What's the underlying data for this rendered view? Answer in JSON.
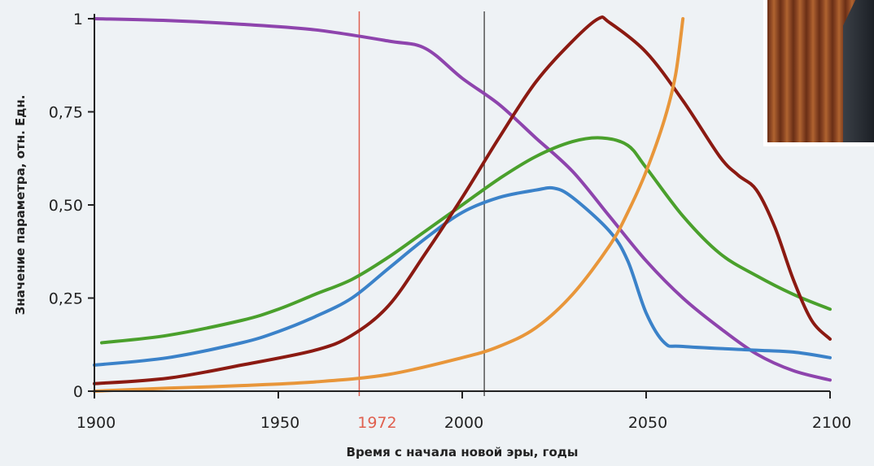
{
  "chart_data": {
    "type": "line",
    "title": "",
    "xlabel": "Время с начала новой эры, годы",
    "ylabel": "Значение параметра, отн. Едн.",
    "xlim": [
      1900,
      2100
    ],
    "ylim": [
      0,
      1
    ],
    "x_ticks": [
      {
        "value": 1900,
        "label": "1900"
      },
      {
        "value": 1950,
        "label": "1950"
      },
      {
        "value": 2000,
        "label": "2000"
      },
      {
        "value": 2050,
        "label": "2050"
      },
      {
        "value": 2100,
        "label": "2100"
      }
    ],
    "y_ticks": [
      {
        "value": 0,
        "label": "0"
      },
      {
        "value": 0.25,
        "label": "0,25"
      },
      {
        "value": 0.5,
        "label": "0,50"
      },
      {
        "value": 0.75,
        "label": "0,75"
      },
      {
        "value": 1,
        "label": "1"
      }
    ],
    "grid": false,
    "legend": "none",
    "vertical_markers": [
      {
        "x": 1972,
        "label": "1972",
        "color": "#e0604f"
      },
      {
        "x": 2006,
        "label": "",
        "color": "#555555"
      }
    ],
    "series": [
      {
        "color": "#8e44ad",
        "points": [
          [
            1900,
            1.0
          ],
          [
            1920,
            0.995
          ],
          [
            1940,
            0.985
          ],
          [
            1960,
            0.97
          ],
          [
            1980,
            0.94
          ],
          [
            1990,
            0.92
          ],
          [
            2000,
            0.84
          ],
          [
            2010,
            0.77
          ],
          [
            2020,
            0.68
          ],
          [
            2030,
            0.59
          ],
          [
            2040,
            0.47
          ],
          [
            2050,
            0.35
          ],
          [
            2060,
            0.25
          ],
          [
            2070,
            0.17
          ],
          [
            2080,
            0.1
          ],
          [
            2090,
            0.055
          ],
          [
            2100,
            0.03
          ]
        ]
      },
      {
        "color": "#4aa02c",
        "points": [
          [
            1902,
            0.13
          ],
          [
            1920,
            0.15
          ],
          [
            1940,
            0.19
          ],
          [
            1950,
            0.22
          ],
          [
            1960,
            0.26
          ],
          [
            1970,
            0.3
          ],
          [
            1980,
            0.36
          ],
          [
            1990,
            0.43
          ],
          [
            2000,
            0.5
          ],
          [
            2010,
            0.57
          ],
          [
            2020,
            0.63
          ],
          [
            2030,
            0.67
          ],
          [
            2038,
            0.68
          ],
          [
            2045,
            0.66
          ],
          [
            2050,
            0.6
          ],
          [
            2060,
            0.47
          ],
          [
            2070,
            0.37
          ],
          [
            2080,
            0.31
          ],
          [
            2090,
            0.26
          ],
          [
            2100,
            0.22
          ]
        ]
      },
      {
        "color": "#3b82c9",
        "points": [
          [
            1900,
            0.07
          ],
          [
            1920,
            0.09
          ],
          [
            1940,
            0.13
          ],
          [
            1950,
            0.16
          ],
          [
            1960,
            0.2
          ],
          [
            1970,
            0.25
          ],
          [
            1980,
            0.33
          ],
          [
            1990,
            0.41
          ],
          [
            2000,
            0.48
          ],
          [
            2010,
            0.52
          ],
          [
            2020,
            0.54
          ],
          [
            2025,
            0.545
          ],
          [
            2030,
            0.52
          ],
          [
            2040,
            0.43
          ],
          [
            2045,
            0.35
          ],
          [
            2050,
            0.21
          ],
          [
            2055,
            0.13
          ],
          [
            2060,
            0.12
          ],
          [
            2080,
            0.11
          ],
          [
            2090,
            0.105
          ],
          [
            2100,
            0.09
          ]
        ]
      },
      {
        "color": "#8b1a12",
        "points": [
          [
            1900,
            0.02
          ],
          [
            1920,
            0.035
          ],
          [
            1940,
            0.07
          ],
          [
            1960,
            0.11
          ],
          [
            1970,
            0.15
          ],
          [
            1980,
            0.23
          ],
          [
            1990,
            0.37
          ],
          [
            2000,
            0.52
          ],
          [
            2010,
            0.68
          ],
          [
            2020,
            0.83
          ],
          [
            2030,
            0.94
          ],
          [
            2037,
            1.0
          ],
          [
            2040,
            0.99
          ],
          [
            2050,
            0.91
          ],
          [
            2060,
            0.78
          ],
          [
            2070,
            0.63
          ],
          [
            2075,
            0.58
          ],
          [
            2080,
            0.54
          ],
          [
            2085,
            0.44
          ],
          [
            2090,
            0.3
          ],
          [
            2095,
            0.19
          ],
          [
            2100,
            0.14
          ]
        ]
      },
      {
        "color": "#e8963a",
        "points": [
          [
            1900,
            0.0
          ],
          [
            1920,
            0.008
          ],
          [
            1940,
            0.015
          ],
          [
            1960,
            0.025
          ],
          [
            1980,
            0.045
          ],
          [
            2000,
            0.09
          ],
          [
            2010,
            0.12
          ],
          [
            2020,
            0.17
          ],
          [
            2030,
            0.26
          ],
          [
            2040,
            0.39
          ],
          [
            2045,
            0.48
          ],
          [
            2050,
            0.59
          ],
          [
            2055,
            0.73
          ],
          [
            2058,
            0.85
          ],
          [
            2060,
            1.0
          ]
        ]
      }
    ]
  }
}
